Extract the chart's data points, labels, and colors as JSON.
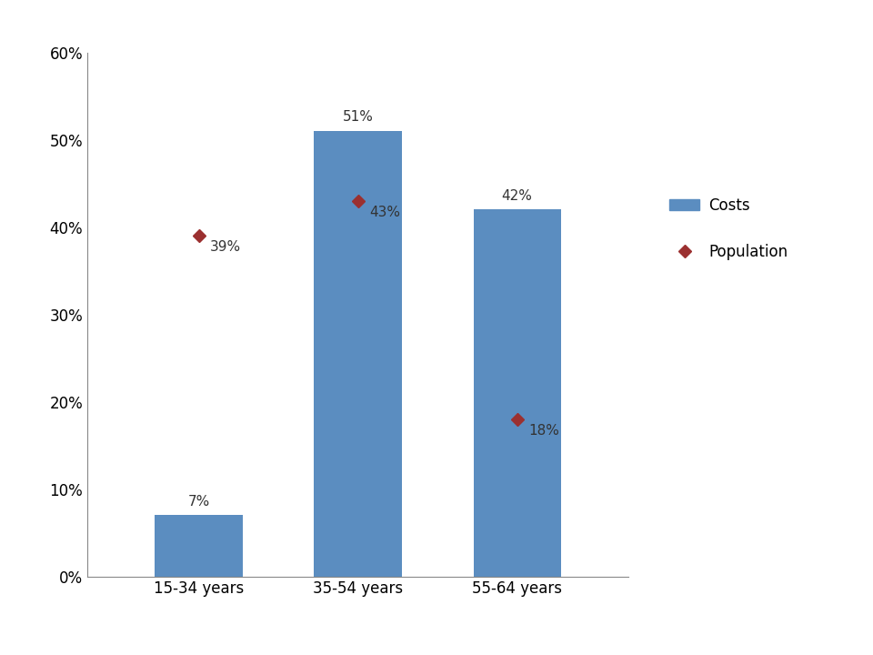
{
  "categories": [
    "15-34 years",
    "35-54 years",
    "55-64 years"
  ],
  "costs_values": [
    7,
    51,
    42
  ],
  "population_values": [
    39,
    43,
    18
  ],
  "bar_color": "#5B8DC0",
  "population_color": "#9B3030",
  "bar_width": 0.55,
  "ylim": [
    0,
    60
  ],
  "yticks": [
    0,
    10,
    20,
    30,
    40,
    50,
    60
  ],
  "ytick_labels": [
    "0%",
    "10%",
    "20%",
    "30%",
    "40%",
    "50%",
    "60%"
  ],
  "legend_costs_label": "Costs",
  "legend_population_label": "Population",
  "background_color": "#FFFFFF"
}
